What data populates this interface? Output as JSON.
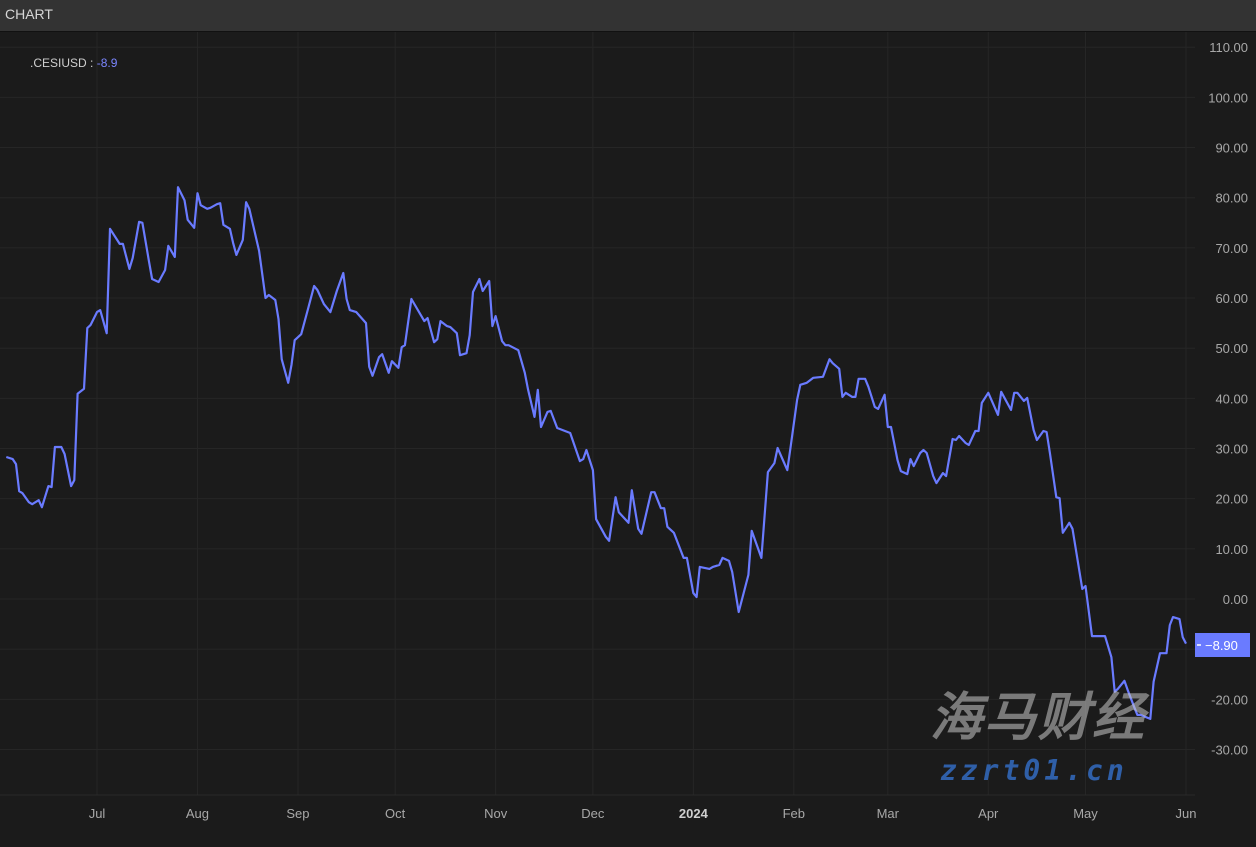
{
  "header": {
    "title": "CHART"
  },
  "legend": {
    "symbol": ".CESIUSD",
    "separator": " : ",
    "value": "-8.9"
  },
  "watermark": {
    "text": "海马财经",
    "url": "zzrt01.cn"
  },
  "chart_data": {
    "type": "line",
    "title": "",
    "xlabel": "",
    "ylabel": "",
    "ylim": [
      -30,
      110
    ],
    "y_ticks": [
      "110.00",
      "100.00",
      "90.00",
      "80.00",
      "70.00",
      "60.00",
      "50.00",
      "40.00",
      "30.00",
      "20.00",
      "10.00",
      "0.00",
      "-20.00",
      "-30.00"
    ],
    "y_tick_values": [
      110,
      100,
      90,
      80,
      70,
      60,
      50,
      40,
      30,
      20,
      10,
      0,
      -20,
      -30
    ],
    "x_ticks": [
      {
        "label": "Jul",
        "date": "2023-07-01",
        "bold": false
      },
      {
        "label": "Aug",
        "date": "2023-08-01",
        "bold": false
      },
      {
        "label": "Sep",
        "date": "2023-09-01",
        "bold": false
      },
      {
        "label": "Oct",
        "date": "2023-10-01",
        "bold": false
      },
      {
        "label": "Nov",
        "date": "2023-11-01",
        "bold": false
      },
      {
        "label": "Dec",
        "date": "2023-12-01",
        "bold": false
      },
      {
        "label": "2024",
        "date": "2024-01-01",
        "bold": true
      },
      {
        "label": "Feb",
        "date": "2024-02-01",
        "bold": false
      },
      {
        "label": "Mar",
        "date": "2024-03-01",
        "bold": false
      },
      {
        "label": "Apr",
        "date": "2024-04-01",
        "bold": false
      },
      {
        "label": "May",
        "date": "2024-05-01",
        "bold": false
      },
      {
        "label": "Jun",
        "date": "2024-06-01",
        "bold": false
      }
    ],
    "grid": true,
    "legend_position": "top-left",
    "last_value_label": "−8.90",
    "colors": {
      "line": "#6a7bff",
      "last_value_bg": "#6a7bff",
      "background": "#1b1b1b",
      "grid": "#262626"
    },
    "series": [
      {
        "name": ".CESIUSD",
        "points": [
          [
            "2023-06-03",
            28.3
          ],
          [
            "2023-06-05",
            27.9
          ],
          [
            "2023-06-06",
            26.9
          ],
          [
            "2023-06-07",
            21.5
          ],
          [
            "2023-06-08",
            21.1
          ],
          [
            "2023-06-10",
            19.3
          ],
          [
            "2023-06-11",
            18.9
          ],
          [
            "2023-06-13",
            19.7
          ],
          [
            "2023-06-14",
            18.3
          ],
          [
            "2023-06-16",
            22.5
          ],
          [
            "2023-06-17",
            22.3
          ],
          [
            "2023-06-18",
            30.3
          ],
          [
            "2023-06-20",
            30.3
          ],
          [
            "2023-06-21",
            28.9
          ],
          [
            "2023-06-23",
            22.5
          ],
          [
            "2023-06-24",
            23.7
          ],
          [
            "2023-06-25",
            40.9
          ],
          [
            "2023-06-27",
            41.9
          ],
          [
            "2023-06-28",
            54.0
          ],
          [
            "2023-06-29",
            54.6
          ],
          [
            "2023-07-01",
            57.2
          ],
          [
            "2023-07-02",
            57.6
          ],
          [
            "2023-07-04",
            53.0
          ],
          [
            "2023-07-05",
            73.8
          ],
          [
            "2023-07-08",
            70.8
          ],
          [
            "2023-07-09",
            70.8
          ],
          [
            "2023-07-11",
            65.8
          ],
          [
            "2023-07-12",
            68.0
          ],
          [
            "2023-07-14",
            75.2
          ],
          [
            "2023-07-15",
            75.0
          ],
          [
            "2023-07-17",
            67.4
          ],
          [
            "2023-07-18",
            63.8
          ],
          [
            "2023-07-20",
            63.2
          ],
          [
            "2023-07-22",
            65.6
          ],
          [
            "2023-07-23",
            70.4
          ],
          [
            "2023-07-25",
            68.2
          ],
          [
            "2023-07-26",
            82.1
          ],
          [
            "2023-07-28",
            79.5
          ],
          [
            "2023-07-29",
            75.6
          ],
          [
            "2023-07-31",
            74.0
          ],
          [
            "2023-08-01",
            80.9
          ],
          [
            "2023-08-02",
            78.5
          ],
          [
            "2023-08-04",
            77.8
          ],
          [
            "2023-08-05",
            78.0
          ],
          [
            "2023-08-07",
            78.7
          ],
          [
            "2023-08-08",
            78.9
          ],
          [
            "2023-08-09",
            74.6
          ],
          [
            "2023-08-11",
            73.8
          ],
          [
            "2023-08-12",
            71.0
          ],
          [
            "2023-08-13",
            68.6
          ],
          [
            "2023-08-15",
            71.6
          ],
          [
            "2023-08-16",
            79.1
          ],
          [
            "2023-08-17",
            77.8
          ],
          [
            "2023-08-19",
            72.2
          ],
          [
            "2023-08-20",
            69.4
          ],
          [
            "2023-08-22",
            60.0
          ],
          [
            "2023-08-23",
            60.6
          ],
          [
            "2023-08-25",
            59.6
          ],
          [
            "2023-08-26",
            55.8
          ],
          [
            "2023-08-27",
            47.8
          ],
          [
            "2023-08-29",
            43.1
          ],
          [
            "2023-08-30",
            46.7
          ],
          [
            "2023-08-31",
            51.6
          ],
          [
            "2023-09-02",
            52.8
          ],
          [
            "2023-09-04",
            57.6
          ],
          [
            "2023-09-06",
            62.4
          ],
          [
            "2023-09-07",
            61.6
          ],
          [
            "2023-09-09",
            58.8
          ],
          [
            "2023-09-11",
            57.2
          ],
          [
            "2023-09-13",
            61.4
          ],
          [
            "2023-09-15",
            65.0
          ],
          [
            "2023-09-16",
            59.8
          ],
          [
            "2023-09-17",
            57.6
          ],
          [
            "2023-09-19",
            57.2
          ],
          [
            "2023-09-22",
            55.0
          ],
          [
            "2023-09-23",
            46.3
          ],
          [
            "2023-09-24",
            44.5
          ],
          [
            "2023-09-26",
            48.2
          ],
          [
            "2023-09-27",
            48.8
          ],
          [
            "2023-09-29",
            45.1
          ],
          [
            "2023-09-30",
            47.4
          ],
          [
            "2023-10-02",
            46.1
          ],
          [
            "2023-10-03",
            50.2
          ],
          [
            "2023-10-04",
            50.6
          ],
          [
            "2023-10-06",
            59.8
          ],
          [
            "2023-10-10",
            55.4
          ],
          [
            "2023-10-11",
            56.0
          ],
          [
            "2023-10-13",
            51.2
          ],
          [
            "2023-10-14",
            51.8
          ],
          [
            "2023-10-15",
            55.4
          ],
          [
            "2023-10-17",
            54.4
          ],
          [
            "2023-10-18",
            54.2
          ],
          [
            "2023-10-20",
            53.0
          ],
          [
            "2023-10-21",
            48.6
          ],
          [
            "2023-10-23",
            49.0
          ],
          [
            "2023-10-24",
            52.6
          ],
          [
            "2023-10-25",
            61.2
          ],
          [
            "2023-10-27",
            63.8
          ],
          [
            "2023-10-28",
            61.4
          ],
          [
            "2023-10-30",
            63.4
          ],
          [
            "2023-10-31",
            54.4
          ],
          [
            "2023-11-01",
            56.4
          ],
          [
            "2023-11-03",
            51.4
          ],
          [
            "2023-11-04",
            50.6
          ],
          [
            "2023-11-05",
            50.6
          ],
          [
            "2023-11-08",
            49.6
          ],
          [
            "2023-11-10",
            45.1
          ],
          [
            "2023-11-11",
            41.7
          ],
          [
            "2023-11-13",
            36.3
          ],
          [
            "2023-11-14",
            41.7
          ],
          [
            "2023-11-15",
            34.3
          ],
          [
            "2023-11-17",
            37.3
          ],
          [
            "2023-11-18",
            37.5
          ],
          [
            "2023-11-20",
            34.1
          ],
          [
            "2023-11-24",
            33.1
          ],
          [
            "2023-11-27",
            27.5
          ],
          [
            "2023-11-28",
            27.9
          ],
          [
            "2023-11-29",
            29.7
          ],
          [
            "2023-12-01",
            25.7
          ],
          [
            "2023-12-02",
            15.9
          ],
          [
            "2023-12-05",
            12.4
          ],
          [
            "2023-12-06",
            11.6
          ],
          [
            "2023-12-08",
            20.3
          ],
          [
            "2023-12-09",
            17.3
          ],
          [
            "2023-12-12",
            15.2
          ],
          [
            "2023-12-13",
            21.7
          ],
          [
            "2023-12-15",
            14.0
          ],
          [
            "2023-12-16",
            13.0
          ],
          [
            "2023-12-19",
            21.3
          ],
          [
            "2023-12-20",
            21.3
          ],
          [
            "2023-12-22",
            18.1
          ],
          [
            "2023-12-23",
            18.1
          ],
          [
            "2023-12-24",
            14.4
          ],
          [
            "2023-12-26",
            13.2
          ],
          [
            "2023-12-29",
            8.2
          ],
          [
            "2023-12-30",
            8.2
          ],
          [
            "2024-01-01",
            1.2
          ],
          [
            "2024-01-02",
            0.4
          ],
          [
            "2024-01-03",
            6.4
          ],
          [
            "2024-01-06",
            6.0
          ],
          [
            "2024-01-07",
            6.4
          ],
          [
            "2024-01-09",
            6.8
          ],
          [
            "2024-01-10",
            8.2
          ],
          [
            "2024-01-12",
            7.6
          ],
          [
            "2024-01-13",
            5.4
          ],
          [
            "2024-01-15",
            -2.6
          ],
          [
            "2024-01-18",
            4.8
          ],
          [
            "2024-01-19",
            13.6
          ],
          [
            "2024-01-22",
            8.2
          ],
          [
            "2024-01-24",
            25.3
          ],
          [
            "2024-01-26",
            27.1
          ],
          [
            "2024-01-27",
            30.1
          ],
          [
            "2024-01-30",
            25.7
          ],
          [
            "2024-01-31",
            30.3
          ],
          [
            "2024-02-02",
            39.7
          ],
          [
            "2024-02-03",
            42.7
          ],
          [
            "2024-02-05",
            43.1
          ],
          [
            "2024-02-07",
            44.1
          ],
          [
            "2024-02-10",
            44.3
          ],
          [
            "2024-02-12",
            47.8
          ],
          [
            "2024-02-13",
            47.0
          ],
          [
            "2024-02-15",
            45.9
          ],
          [
            "2024-02-16",
            40.3
          ],
          [
            "2024-02-17",
            41.1
          ],
          [
            "2024-02-19",
            40.3
          ],
          [
            "2024-02-20",
            40.3
          ],
          [
            "2024-02-21",
            43.9
          ],
          [
            "2024-02-23",
            43.9
          ],
          [
            "2024-02-24",
            42.3
          ],
          [
            "2024-02-26",
            38.3
          ],
          [
            "2024-02-27",
            37.9
          ],
          [
            "2024-02-29",
            40.7
          ],
          [
            "2024-03-01",
            34.3
          ],
          [
            "2024-03-02",
            34.3
          ],
          [
            "2024-03-04",
            27.7
          ],
          [
            "2024-03-05",
            25.5
          ],
          [
            "2024-03-07",
            24.9
          ],
          [
            "2024-03-08",
            27.9
          ],
          [
            "2024-03-09",
            26.5
          ],
          [
            "2024-03-11",
            29.1
          ],
          [
            "2024-03-12",
            29.7
          ],
          [
            "2024-03-13",
            29.1
          ],
          [
            "2024-03-15",
            24.5
          ],
          [
            "2024-03-16",
            23.1
          ],
          [
            "2024-03-18",
            25.1
          ],
          [
            "2024-03-19",
            24.5
          ],
          [
            "2024-03-21",
            31.9
          ],
          [
            "2024-03-22",
            31.7
          ],
          [
            "2024-03-23",
            32.5
          ],
          [
            "2024-03-25",
            31.1
          ],
          [
            "2024-03-26",
            30.7
          ],
          [
            "2024-03-28",
            33.5
          ],
          [
            "2024-03-29",
            33.5
          ],
          [
            "2024-03-30",
            39.1
          ],
          [
            "2024-04-01",
            41.1
          ],
          [
            "2024-04-04",
            36.7
          ],
          [
            "2024-04-05",
            41.3
          ],
          [
            "2024-04-08",
            37.7
          ],
          [
            "2024-04-09",
            41.1
          ],
          [
            "2024-04-10",
            41.1
          ],
          [
            "2024-04-12",
            39.5
          ],
          [
            "2024-04-13",
            40.1
          ],
          [
            "2024-04-15",
            33.7
          ],
          [
            "2024-04-16",
            31.7
          ],
          [
            "2024-04-18",
            33.5
          ],
          [
            "2024-04-19",
            33.3
          ],
          [
            "2024-04-20",
            29.1
          ],
          [
            "2024-04-22",
            20.3
          ],
          [
            "2024-04-23",
            20.1
          ],
          [
            "2024-04-24",
            13.2
          ],
          [
            "2024-04-26",
            15.2
          ],
          [
            "2024-04-27",
            14.0
          ],
          [
            "2024-04-30",
            2.0
          ],
          [
            "2024-05-01",
            2.6
          ],
          [
            "2024-05-03",
            -7.4
          ],
          [
            "2024-05-07",
            -7.4
          ],
          [
            "2024-05-09",
            -11.6
          ],
          [
            "2024-05-10",
            -18.5
          ],
          [
            "2024-05-11",
            -17.9
          ],
          [
            "2024-05-13",
            -16.3
          ],
          [
            "2024-05-14",
            -18.1
          ],
          [
            "2024-05-16",
            -21.5
          ],
          [
            "2024-05-17",
            -23.1
          ],
          [
            "2024-05-18",
            -23.1
          ],
          [
            "2024-05-21",
            -23.9
          ],
          [
            "2024-05-22",
            -16.5
          ],
          [
            "2024-05-24",
            -10.8
          ],
          [
            "2024-05-26",
            -10.8
          ],
          [
            "2024-05-27",
            -5.2
          ],
          [
            "2024-05-28",
            -3.6
          ],
          [
            "2024-05-30",
            -4.0
          ],
          [
            "2024-05-31",
            -7.6
          ],
          [
            "2024-06-01",
            -8.9
          ]
        ]
      }
    ]
  }
}
